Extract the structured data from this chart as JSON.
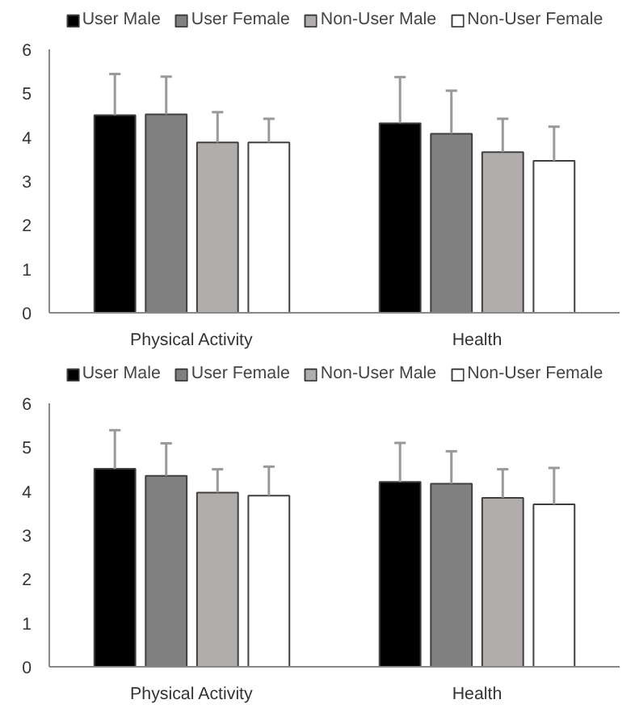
{
  "chart_data": [
    {
      "type": "bar",
      "categories": [
        "Physical Activity",
        "Health"
      ],
      "ylim": [
        0,
        6
      ],
      "yticks": [
        0,
        1,
        2,
        3,
        4,
        5,
        6
      ],
      "grid": false,
      "legend": "top",
      "series": [
        {
          "name": "User Male",
          "color": "#000000",
          "values": [
            4.5,
            4.32
          ],
          "errors": [
            [
              4.5,
              5.44
            ],
            [
              4.32,
              5.37
            ]
          ]
        },
        {
          "name": "User Female",
          "color": "#808080",
          "values": [
            4.52,
            4.08
          ],
          "errors": [
            [
              4.52,
              5.38
            ],
            [
              4.08,
              5.06
            ]
          ]
        },
        {
          "name": "Non-User Male",
          "color": "#b0adab",
          "values": [
            3.88,
            3.66
          ],
          "errors": [
            [
              3.88,
              4.57
            ],
            [
              3.66,
              4.42
            ]
          ]
        },
        {
          "name": "Non-User Female",
          "color": "#ffffff",
          "values": [
            3.88,
            3.46
          ],
          "errors": [
            [
              3.88,
              4.42
            ],
            [
              3.46,
              4.24
            ]
          ]
        }
      ]
    },
    {
      "type": "bar",
      "categories": [
        "Physical Activity",
        "Health"
      ],
      "ylim": [
        0,
        6
      ],
      "yticks": [
        0,
        1,
        2,
        3,
        4,
        5,
        6
      ],
      "grid": false,
      "legend": "top",
      "series": [
        {
          "name": "User Male",
          "color": "#000000",
          "values": [
            4.51,
            4.21
          ],
          "errors": [
            [
              4.51,
              5.39
            ],
            [
              4.21,
              5.1
            ]
          ]
        },
        {
          "name": "User Female",
          "color": "#808080",
          "values": [
            4.35,
            4.17
          ],
          "errors": [
            [
              4.35,
              5.09
            ],
            [
              4.17,
              4.91
            ]
          ]
        },
        {
          "name": "Non-User Male",
          "color": "#b0adab",
          "values": [
            3.97,
            3.85
          ],
          "errors": [
            [
              3.97,
              4.5
            ],
            [
              3.85,
              4.5
            ]
          ]
        },
        {
          "name": "Non-User Female",
          "color": "#ffffff",
          "values": [
            3.9,
            3.7
          ],
          "errors": [
            [
              3.9,
              4.56
            ],
            [
              3.7,
              4.53
            ]
          ]
        }
      ]
    }
  ]
}
